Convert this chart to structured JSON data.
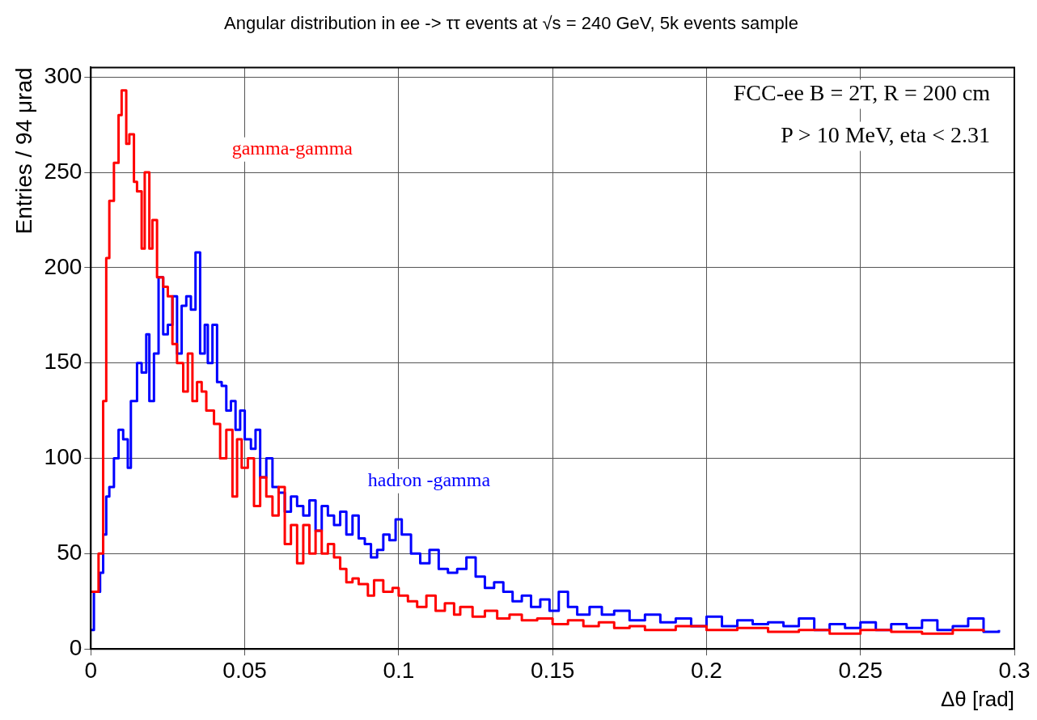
{
  "chart_data": {
    "type": "step",
    "title": "Angular distribution in ee -> ττ events at √s = 240 GeV, 5k events sample",
    "xlabel": "Δθ [rad]",
    "ylabel": "Entries / 94 μrad",
    "xlim": [
      0,
      0.3
    ],
    "xticks": [
      0,
      0.05,
      0.1,
      0.15,
      0.2,
      0.25,
      0.3
    ],
    "ylim": [
      0,
      305
    ],
    "yticks": [
      0,
      50,
      100,
      150,
      200,
      250,
      300
    ],
    "grid": true,
    "legend": false,
    "line_style": "solid",
    "marker": "none",
    "annotations": [
      "FCC-ee B = 2T, R = 200 cm",
      "P > 10 MeV, eta < 2.31"
    ],
    "series": [
      {
        "name": "gamma-gamma",
        "color": "#ff0000",
        "x": [
          0,
          0.0025,
          0.004,
          0.005,
          0.006,
          0.0075,
          0.009,
          0.01,
          0.0115,
          0.0125,
          0.014,
          0.015,
          0.0165,
          0.0175,
          0.019,
          0.02,
          0.0215,
          0.0235,
          0.025,
          0.0265,
          0.028,
          0.03,
          0.0315,
          0.033,
          0.0345,
          0.036,
          0.0375,
          0.04,
          0.042,
          0.044,
          0.046,
          0.0475,
          0.049,
          0.051,
          0.053,
          0.055,
          0.057,
          0.059,
          0.061,
          0.063,
          0.065,
          0.067,
          0.069,
          0.071,
          0.073,
          0.075,
          0.077,
          0.079,
          0.081,
          0.083,
          0.085,
          0.087,
          0.09,
          0.092,
          0.095,
          0.098,
          0.1,
          0.103,
          0.106,
          0.109,
          0.112,
          0.115,
          0.118,
          0.12,
          0.124,
          0.128,
          0.132,
          0.136,
          0.14,
          0.145,
          0.15,
          0.155,
          0.16,
          0.165,
          0.17,
          0.175,
          0.18,
          0.19,
          0.2,
          0.21,
          0.22,
          0.23,
          0.24,
          0.25,
          0.26,
          0.27,
          0.28,
          0.29
        ],
        "values": [
          30,
          50,
          130,
          205,
          235,
          255,
          280,
          293,
          265,
          270,
          245,
          240,
          210,
          250,
          210,
          225,
          195,
          190,
          185,
          160,
          150,
          135,
          155,
          130,
          140,
          135,
          125,
          118,
          100,
          115,
          80,
          110,
          95,
          100,
          75,
          90,
          80,
          70,
          85,
          55,
          65,
          45,
          65,
          50,
          62,
          50,
          55,
          48,
          42,
          35,
          37,
          34,
          28,
          36,
          30,
          32,
          28,
          25,
          22,
          28,
          20,
          24,
          18,
          22,
          17,
          20,
          16,
          18,
          15,
          16,
          13,
          15,
          12,
          14,
          11,
          12,
          10,
          12,
          10,
          11,
          9,
          10,
          8,
          10,
          9,
          8,
          10,
          9
        ]
      },
      {
        "name": "hadron -gamma",
        "color": "#0000ff",
        "x": [
          0,
          0.001,
          0.003,
          0.004,
          0.005,
          0.006,
          0.0075,
          0.009,
          0.0105,
          0.012,
          0.013,
          0.015,
          0.0165,
          0.018,
          0.019,
          0.0205,
          0.022,
          0.0235,
          0.025,
          0.0265,
          0.028,
          0.0295,
          0.031,
          0.0325,
          0.034,
          0.0355,
          0.037,
          0.038,
          0.0395,
          0.041,
          0.0425,
          0.044,
          0.0455,
          0.047,
          0.0485,
          0.05,
          0.052,
          0.0535,
          0.055,
          0.057,
          0.059,
          0.061,
          0.063,
          0.065,
          0.067,
          0.069,
          0.071,
          0.073,
          0.075,
          0.077,
          0.079,
          0.081,
          0.083,
          0.085,
          0.087,
          0.089,
          0.091,
          0.093,
          0.095,
          0.097,
          0.099,
          0.101,
          0.104,
          0.107,
          0.11,
          0.113,
          0.116,
          0.119,
          0.122,
          0.125,
          0.128,
          0.131,
          0.134,
          0.137,
          0.14,
          0.143,
          0.146,
          0.149,
          0.152,
          0.155,
          0.158,
          0.162,
          0.166,
          0.17,
          0.175,
          0.18,
          0.185,
          0.19,
          0.195,
          0.2,
          0.205,
          0.21,
          0.215,
          0.22,
          0.225,
          0.23,
          0.235,
          0.24,
          0.245,
          0.25,
          0.255,
          0.26,
          0.265,
          0.27,
          0.275,
          0.28,
          0.285,
          0.29,
          0.295
        ],
        "values": [
          10,
          30,
          40,
          60,
          80,
          85,
          100,
          115,
          110,
          95,
          130,
          150,
          145,
          165,
          130,
          155,
          195,
          165,
          170,
          185,
          155,
          180,
          185,
          178,
          208,
          155,
          170,
          150,
          170,
          140,
          138,
          125,
          130,
          115,
          125,
          110,
          105,
          115,
          90,
          100,
          85,
          82,
          72,
          80,
          75,
          70,
          78,
          62,
          75,
          70,
          65,
          72,
          60,
          70,
          58,
          55,
          48,
          52,
          60,
          57,
          68,
          60,
          50,
          45,
          52,
          42,
          40,
          42,
          48,
          38,
          32,
          35,
          30,
          25,
          28,
          22,
          26,
          20,
          30,
          22,
          18,
          22,
          18,
          20,
          15,
          18,
          14,
          16,
          12,
          17,
          12,
          15,
          13,
          14,
          12,
          16,
          10,
          13,
          11,
          14,
          10,
          13,
          11,
          15,
          10,
          12,
          16,
          9,
          10
        ]
      }
    ]
  }
}
